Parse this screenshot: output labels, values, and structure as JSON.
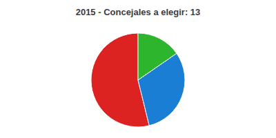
{
  "chart_data": {
    "type": "pie",
    "title": "2015 - Concejales a elegir: 13",
    "values": [
      7,
      4,
      2
    ],
    "colors": [
      "#dd2222",
      "#1a7fd4",
      "#2db52d"
    ]
  }
}
